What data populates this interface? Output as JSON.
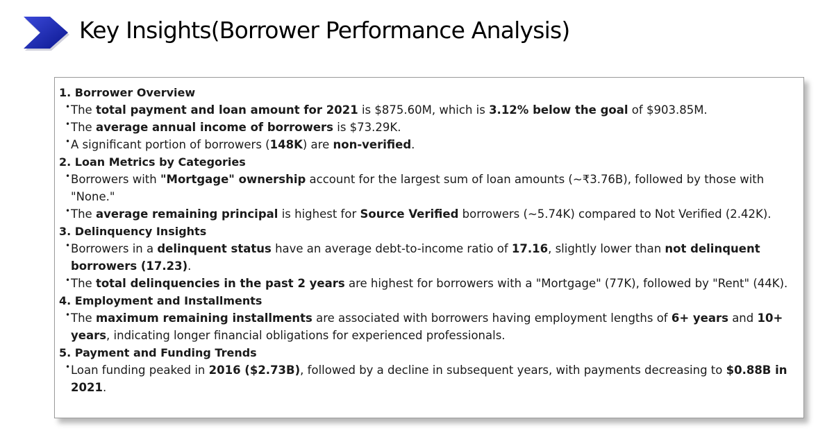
{
  "header": {
    "title": "Key Insights(Borrower Performance Analysis)",
    "icon": "chevron-right-icon",
    "accent_color": "#1f2db5"
  },
  "sections": [
    {
      "title": "1. Borrower Overview",
      "bullets": [
        [
          {
            "t": "The "
          },
          {
            "t": "total payment and loan amount for 2021",
            "b": true
          },
          {
            "t": " is $875.60M, which is "
          },
          {
            "t": "3.12% below the goal",
            "b": true
          },
          {
            "t": " of $903.85M."
          }
        ],
        [
          {
            "t": "The "
          },
          {
            "t": "average annual income of borrowers",
            "b": true
          },
          {
            "t": " is $73.29K."
          }
        ],
        [
          {
            "t": "A significant portion of borrowers ("
          },
          {
            "t": "148K",
            "b": true
          },
          {
            "t": ") are "
          },
          {
            "t": "non-verified",
            "b": true
          },
          {
            "t": "."
          }
        ]
      ]
    },
    {
      "title": "2. Loan Metrics by Categories",
      "bullets": [
        [
          {
            "t": "Borrowers with "
          },
          {
            "t": "\"Mortgage\" ownership",
            "b": true
          },
          {
            "t": " account for the largest sum of loan amounts (~₹3.76B), followed by those with \"None.\""
          }
        ],
        [
          {
            "t": "The "
          },
          {
            "t": "average remaining principal",
            "b": true
          },
          {
            "t": " is highest for "
          },
          {
            "t": "Source Verified",
            "b": true
          },
          {
            "t": " borrowers (~5.74K) compared to Not Verified (2.42K)."
          }
        ]
      ]
    },
    {
      "title": "3. Delinquency Insights",
      "bullets": [
        [
          {
            "t": "Borrowers in a "
          },
          {
            "t": "delinquent status",
            "b": true
          },
          {
            "t": " have an average debt-to-income ratio of "
          },
          {
            "t": "17.16",
            "b": true
          },
          {
            "t": ", slightly lower than "
          },
          {
            "t": "not delinquent borrowers (17.23)",
            "b": true
          },
          {
            "t": "."
          }
        ],
        [
          {
            "t": "The "
          },
          {
            "t": "total delinquencies in the past 2 years",
            "b": true
          },
          {
            "t": " are highest for borrowers with a \"Mortgage\" (77K), followed by \"Rent\" (44K)."
          }
        ]
      ]
    },
    {
      "title": "4. Employment and Installments",
      "bullets": [
        [
          {
            "t": "The "
          },
          {
            "t": "maximum remaining installments",
            "b": true
          },
          {
            "t": " are associated with borrowers having employment lengths of "
          },
          {
            "t": "6+ years",
            "b": true
          },
          {
            "t": " and "
          },
          {
            "t": "10+ years",
            "b": true
          },
          {
            "t": ", indicating longer financial obligations for experienced professionals."
          }
        ]
      ]
    },
    {
      "title": "5. Payment and Funding Trends",
      "bullets": [
        [
          {
            "t": "Loan funding peaked in "
          },
          {
            "t": "2016 ($2.73B)",
            "b": true
          },
          {
            "t": ", followed by a decline in subsequent years, with payments decreasing to "
          },
          {
            "t": "$0.88B in 2021",
            "b": true
          },
          {
            "t": "."
          }
        ]
      ]
    }
  ]
}
